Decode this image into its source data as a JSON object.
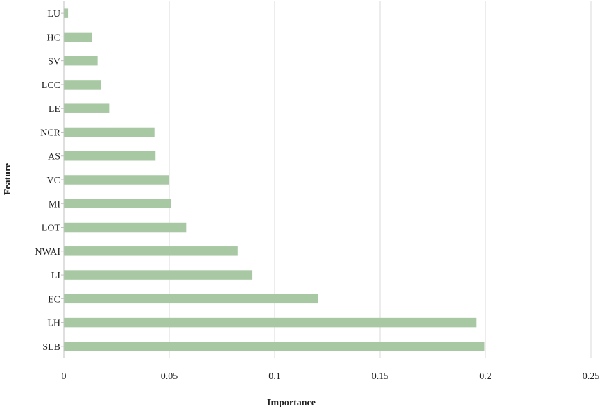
{
  "chart_data": {
    "type": "bar",
    "orientation": "horizontal",
    "xlabel": "Importance",
    "ylabel": "Feature",
    "xlim": [
      0,
      0.25
    ],
    "xticks": [
      0,
      0.05,
      0.1,
      0.15,
      0.2,
      0.25
    ],
    "xtick_labels": [
      "0",
      "0.05",
      "0.1",
      "0.15",
      "0.2",
      "0.25"
    ],
    "grid": "vertical",
    "legend": "none",
    "categories": [
      "LU",
      "HC",
      "SV",
      "LCC",
      "LE",
      "NCR",
      "AS",
      "VC",
      "MI",
      "LOT",
      "NWAI",
      "LI",
      "EC",
      "LH",
      "SLB"
    ],
    "values": [
      0.002,
      0.0135,
      0.016,
      0.0175,
      0.0215,
      0.043,
      0.0435,
      0.05,
      0.051,
      0.058,
      0.0825,
      0.0895,
      0.1205,
      0.1955,
      0.1995
    ],
    "colors": {
      "bar": "#a8c8a4",
      "grid": "#d9d9d9",
      "axis": "#bfbfbf"
    }
  }
}
